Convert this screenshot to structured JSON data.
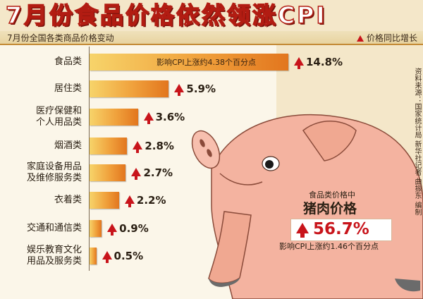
{
  "header": {
    "title": "7月份食品价格依然领涨CPI",
    "subtitle": "7月份全国各类商品价格变动",
    "legend_label": "价格同比增长"
  },
  "source": "资料来源：国家统计局 新华社记者 曲振东 编制",
  "colors": {
    "title_red": "#b21c12",
    "arrow_red": "#c8141b",
    "bar_light": "#f7d46a",
    "bar_dark": "#e2761e",
    "pig_pink": "#f4b3a0"
  },
  "chart_data": {
    "type": "bar",
    "orientation": "horizontal",
    "title": "7月份全国各类商品价格变动",
    "legend": "价格同比增长",
    "categories": [
      "食品类",
      "居住类",
      "医疗保健和\n个人用品类",
      "烟酒类",
      "家庭设备用品\n及维修服务类",
      "衣着类",
      "交通和通信类",
      "娱乐教育文化\n用品及服务类"
    ],
    "values": [
      14.8,
      5.9,
      3.6,
      2.8,
      2.7,
      2.2,
      0.9,
      0.5
    ],
    "value_labels": [
      "14.8%",
      "5.9%",
      "3.6%",
      "2.8%",
      "2.7%",
      "2.2%",
      "0.9%",
      "0.5%"
    ],
    "annotations": {
      "food_note": "影响CPI上涨约4.38个百分点"
    },
    "xlim": [
      0,
      14.8
    ]
  },
  "pig": {
    "label_small": "食品类价格中",
    "label_big": "猪肉价格",
    "value_label": "56.7%",
    "value": 56.7,
    "note": "影响CPI上涨约1.46个百分点"
  }
}
